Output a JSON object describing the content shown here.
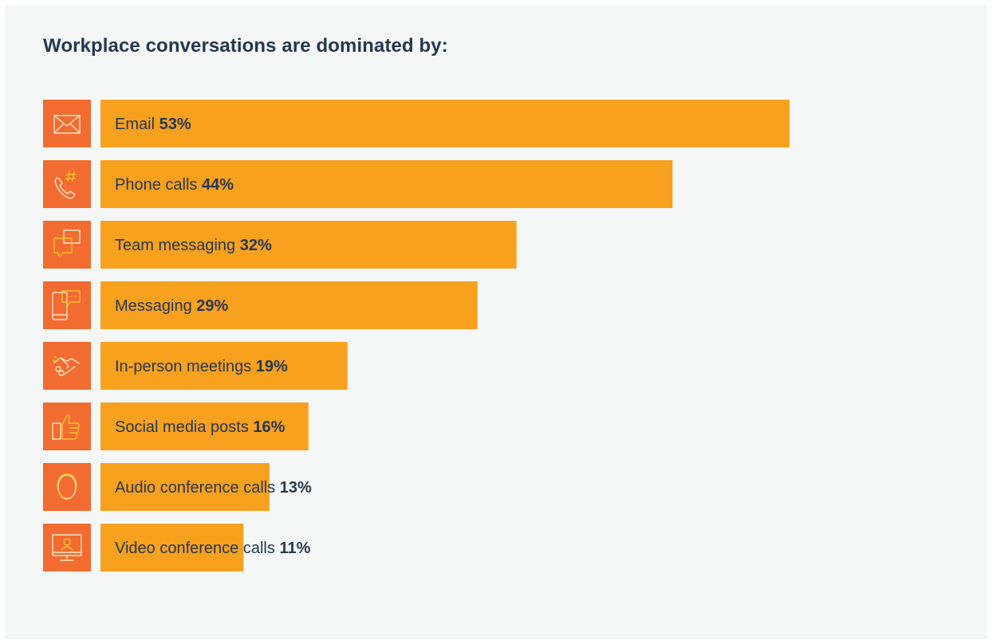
{
  "colors": {
    "background": "#f5f6f6",
    "icon_tile": "#f26b30",
    "bar": "#f7a11e",
    "icon_stroke": "#fde7c8",
    "icon_accent": "#f7c430",
    "text": "#243850"
  },
  "chart_data": {
    "type": "bar",
    "orientation": "horizontal",
    "title": "Workplace conversations are dominated by:",
    "unit": "%",
    "categories": [
      "Email",
      "Phone calls",
      "Team messaging",
      "Messaging",
      "In-person meetings",
      "Social media posts",
      "Audio conference calls",
      "Video conference calls"
    ],
    "values": [
      53,
      44,
      32,
      29,
      19,
      16,
      13,
      11
    ],
    "value_labels": [
      "53%",
      "44%",
      "32%",
      "29%",
      "19%",
      "16%",
      "13%",
      "11%"
    ],
    "icons": [
      "envelope-icon",
      "phone-hash-icon",
      "chat-bubbles-icon",
      "mobile-message-icon",
      "handshake-icon",
      "thumbs-up-phone-icon",
      "headset-icon",
      "video-monitor-icon"
    ],
    "grid": false,
    "legend": "none"
  }
}
